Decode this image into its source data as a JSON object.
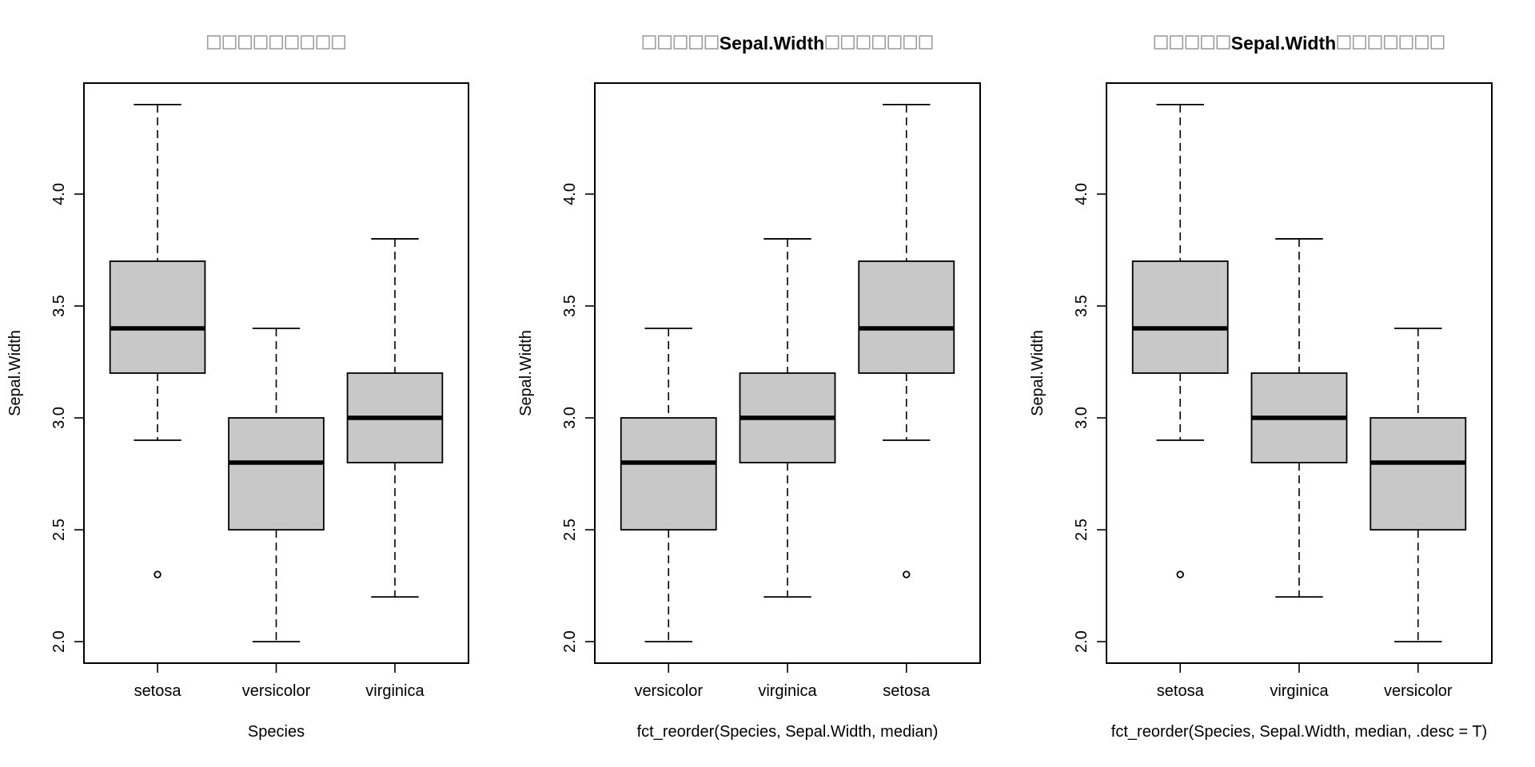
{
  "chart_data": [
    {
      "type": "boxplot",
      "title": "□□□□□□□□□",
      "title_parts": [
        {
          "kind": "missing-glyphs",
          "count": 9
        }
      ],
      "xlabel": "Species",
      "ylabel": "Sepal.Width",
      "ylim": [
        2.0,
        4.4
      ],
      "yticks": [
        2.0,
        2.5,
        3.0,
        3.5,
        4.0
      ],
      "ytick_labels": [
        "2.0",
        "2.5",
        "3.0",
        "3.5",
        "4.0"
      ],
      "categories": [
        "setosa",
        "versicolor",
        "virginica"
      ],
      "boxes": [
        {
          "name": "setosa",
          "whisker_low": 2.9,
          "q1": 3.2,
          "median": 3.4,
          "q3": 3.7,
          "whisker_high": 4.4,
          "outliers": [
            2.3
          ]
        },
        {
          "name": "versicolor",
          "whisker_low": 2.0,
          "q1": 2.5,
          "median": 2.8,
          "q3": 3.0,
          "whisker_high": 3.4,
          "outliers": []
        },
        {
          "name": "virginica",
          "whisker_low": 2.2,
          "q1": 2.8,
          "median": 3.0,
          "q3": 3.2,
          "whisker_high": 3.8,
          "outliers": []
        }
      ],
      "box_fill": "#c8c8c8",
      "grid": false
    },
    {
      "type": "boxplot",
      "title": "□□□□□Sepal.Width□□□□□□□",
      "title_parts": [
        {
          "kind": "missing-glyphs",
          "count": 5
        },
        {
          "kind": "text",
          "text": "Sepal.Width"
        },
        {
          "kind": "missing-glyphs",
          "count": 7
        }
      ],
      "xlabel": "fct_reorder(Species, Sepal.Width, median)",
      "ylabel": "Sepal.Width",
      "ylim": [
        2.0,
        4.4
      ],
      "yticks": [
        2.0,
        2.5,
        3.0,
        3.5,
        4.0
      ],
      "ytick_labels": [
        "2.0",
        "2.5",
        "3.0",
        "3.5",
        "4.0"
      ],
      "categories": [
        "versicolor",
        "virginica",
        "setosa"
      ],
      "boxes": [
        {
          "name": "versicolor",
          "whisker_low": 2.0,
          "q1": 2.5,
          "median": 2.8,
          "q3": 3.0,
          "whisker_high": 3.4,
          "outliers": []
        },
        {
          "name": "virginica",
          "whisker_low": 2.2,
          "q1": 2.8,
          "median": 3.0,
          "q3": 3.2,
          "whisker_high": 3.8,
          "outliers": []
        },
        {
          "name": "setosa",
          "whisker_low": 2.9,
          "q1": 3.2,
          "median": 3.4,
          "q3": 3.7,
          "whisker_high": 4.4,
          "outliers": [
            2.3
          ]
        }
      ],
      "box_fill": "#c8c8c8",
      "grid": false
    },
    {
      "type": "boxplot",
      "title": "□□□□□Sepal.Width□□□□□□□",
      "title_parts": [
        {
          "kind": "missing-glyphs",
          "count": 5
        },
        {
          "kind": "text",
          "text": "Sepal.Width"
        },
        {
          "kind": "missing-glyphs",
          "count": 7
        }
      ],
      "xlabel": "fct_reorder(Species, Sepal.Width, median, .desc = T)",
      "ylabel": "Sepal.Width",
      "ylim": [
        2.0,
        4.4
      ],
      "yticks": [
        2.0,
        2.5,
        3.0,
        3.5,
        4.0
      ],
      "ytick_labels": [
        "2.0",
        "2.5",
        "3.0",
        "3.5",
        "4.0"
      ],
      "categories": [
        "setosa",
        "virginica",
        "versicolor"
      ],
      "boxes": [
        {
          "name": "setosa",
          "whisker_low": 2.9,
          "q1": 3.2,
          "median": 3.4,
          "q3": 3.7,
          "whisker_high": 4.4,
          "outliers": [
            2.3
          ]
        },
        {
          "name": "virginica",
          "whisker_low": 2.2,
          "q1": 2.8,
          "median": 3.0,
          "q3": 3.2,
          "whisker_high": 3.8,
          "outliers": []
        },
        {
          "name": "versicolor",
          "whisker_low": 2.0,
          "q1": 2.5,
          "median": 2.8,
          "q3": 3.0,
          "whisker_high": 3.4,
          "outliers": []
        }
      ],
      "box_fill": "#c8c8c8",
      "grid": false
    }
  ]
}
